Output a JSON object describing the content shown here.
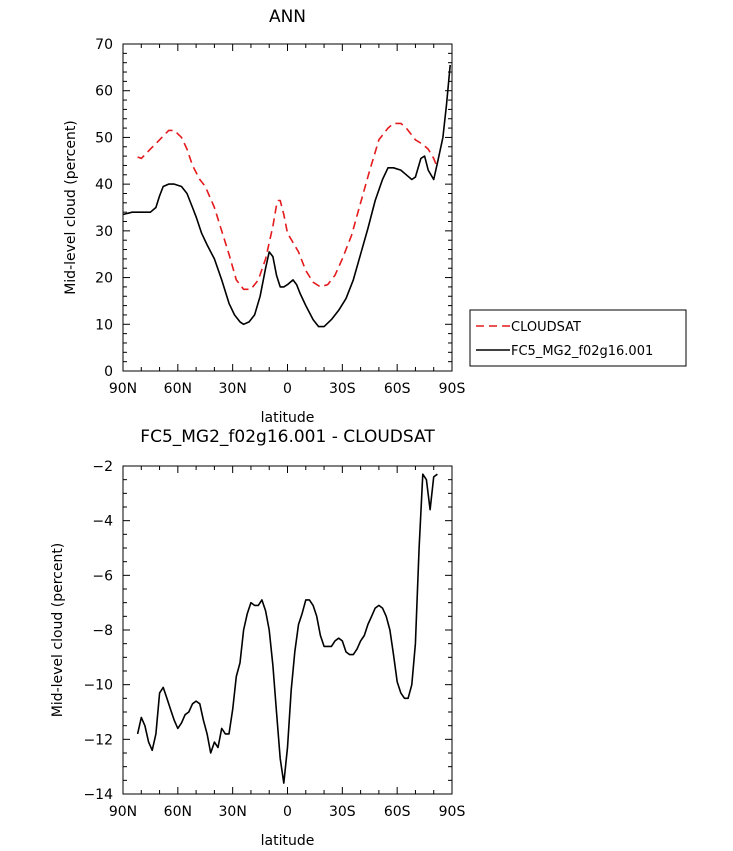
{
  "chart_data": [
    {
      "type": "line",
      "title": "ANN",
      "xlabel": "latitude",
      "ylabel": "Mid-level cloud (percent)",
      "xlim": [
        90,
        -90
      ],
      "ylim": [
        0,
        70
      ],
      "x_ticks": [
        90,
        60,
        30,
        0,
        -30,
        -60,
        -90
      ],
      "x_tick_labels": [
        "90N",
        "60N",
        "30N",
        "0",
        "30S",
        "60S",
        "90S"
      ],
      "y_ticks": [
        0,
        10,
        20,
        30,
        40,
        50,
        60,
        70
      ],
      "y_tick_labels": [
        "0",
        "10",
        "20",
        "30",
        "40",
        "50",
        "60",
        "70"
      ],
      "grid": false,
      "legend_position": "outside right",
      "series": [
        {
          "name": "CLOUDSAT",
          "color": "#e41a1c",
          "dash": "dashed",
          "x": [
            82,
            80,
            75,
            70,
            65,
            62,
            58,
            55,
            52,
            48,
            45,
            40,
            36,
            32,
            28,
            24,
            20,
            16,
            12,
            8,
            6,
            5,
            4,
            2,
            0,
            -3,
            -6,
            -10,
            -14,
            -18,
            -22,
            -26,
            -30,
            -35,
            -40,
            -45,
            -50,
            -55,
            -58,
            -62,
            -65,
            -70,
            -74,
            -77,
            -80,
            -82
          ],
          "y": [
            45.8,
            45.5,
            47.5,
            49.5,
            51.5,
            51.5,
            50,
            47.5,
            44,
            41,
            39.5,
            35,
            30,
            25,
            19.5,
            17.5,
            17.5,
            19.5,
            24,
            31,
            35.5,
            36.5,
            36.5,
            33.5,
            29.5,
            27.5,
            25.5,
            21.5,
            19,
            18,
            18.5,
            20.5,
            24,
            29,
            36,
            43,
            49.5,
            52,
            53,
            53,
            52,
            49.5,
            48.5,
            47.5,
            45.5,
            43.5
          ]
        },
        {
          "name": "FC5_MG2_f02g16.001",
          "color": "#000000",
          "dash": "solid",
          "x": [
            90,
            85,
            80,
            75,
            72,
            70,
            68,
            65,
            62,
            58,
            55,
            52,
            50,
            47,
            44,
            40,
            36,
            32,
            29,
            26,
            24,
            21,
            18,
            15,
            12,
            10,
            8,
            6,
            4,
            2,
            0,
            -3,
            -5,
            -7,
            -10,
            -14,
            -17,
            -20,
            -24,
            -28,
            -32,
            -36,
            -40,
            -44,
            -48,
            -52,
            -55,
            -58,
            -62,
            -65,
            -68,
            -70,
            -73,
            -75,
            -77,
            -80,
            -82,
            -85,
            -87,
            -89
          ],
          "y": [
            33.5,
            34,
            34,
            34,
            35,
            37.5,
            39.5,
            40,
            40,
            39.5,
            38,
            35,
            33,
            29.5,
            27,
            24,
            19.5,
            14.5,
            12,
            10.5,
            10,
            10.5,
            12,
            16,
            22,
            25.5,
            24.5,
            20.5,
            18,
            18,
            18.5,
            19.5,
            18.5,
            16.5,
            14,
            11,
            9.5,
            9.5,
            11,
            13,
            15.5,
            19.5,
            25,
            30.5,
            36.5,
            41,
            43.5,
            43.5,
            43,
            42,
            41,
            41.5,
            45.5,
            46,
            43,
            41,
            44.5,
            50,
            57,
            65.5
          ]
        }
      ]
    },
    {
      "type": "line",
      "title": "FC5_MG2_f02g16.001 - CLOUDSAT",
      "xlabel": "latitude",
      "ylabel": "Mid-level cloud (percent)",
      "xlim": [
        90,
        -90
      ],
      "ylim": [
        -14,
        -2
      ],
      "x_ticks": [
        90,
        60,
        30,
        0,
        -30,
        -60,
        -90
      ],
      "x_tick_labels": [
        "90N",
        "60N",
        "30N",
        "0",
        "30S",
        "60S",
        "90S"
      ],
      "y_ticks": [
        -14,
        -12,
        -10,
        -8,
        -6,
        -4,
        -2
      ],
      "y_tick_labels": [
        "−14",
        "−12",
        "−10",
        "−8",
        "−6",
        "−4",
        "−2"
      ],
      "grid": false,
      "series": [
        {
          "color": "#000000",
          "dash": "solid",
          "x": [
            82,
            80,
            78,
            76,
            74,
            72,
            70,
            68,
            66,
            64,
            62,
            60,
            58,
            56,
            54,
            52,
            50,
            48,
            46,
            44,
            42,
            40,
            38,
            36,
            34,
            32,
            30,
            28,
            26,
            24,
            22,
            20,
            18,
            16,
            14,
            12,
            10,
            8,
            6,
            4,
            2,
            0,
            -2,
            -4,
            -6,
            -8,
            -10,
            -12,
            -14,
            -16,
            -18,
            -20,
            -22,
            -24,
            -26,
            -28,
            -30,
            -32,
            -34,
            -36,
            -38,
            -40,
            -42,
            -44,
            -46,
            -48,
            -50,
            -52,
            -54,
            -56,
            -58,
            -60,
            -62,
            -64,
            -66,
            -68,
            -70,
            -72,
            -74,
            -76,
            -78,
            -80,
            -82
          ],
          "y": [
            -11.8,
            -11.2,
            -11.5,
            -12.1,
            -12.4,
            -11.8,
            -10.3,
            -10.1,
            -10.5,
            -10.9,
            -11.3,
            -11.6,
            -11.4,
            -11.1,
            -11.0,
            -10.7,
            -10.6,
            -10.7,
            -11.3,
            -11.8,
            -12.5,
            -12.1,
            -12.3,
            -11.6,
            -11.8,
            -11.8,
            -10.9,
            -9.7,
            -9.2,
            -8.0,
            -7.4,
            -7.0,
            -7.1,
            -7.1,
            -6.9,
            -7.3,
            -8.0,
            -9.3,
            -11.0,
            -12.7,
            -13.6,
            -12.3,
            -10.2,
            -8.8,
            -7.8,
            -7.4,
            -6.9,
            -6.9,
            -7.1,
            -7.5,
            -8.2,
            -8.6,
            -8.6,
            -8.6,
            -8.4,
            -8.3,
            -8.4,
            -8.8,
            -8.9,
            -8.9,
            -8.7,
            -8.4,
            -8.2,
            -7.8,
            -7.5,
            -7.2,
            -7.1,
            -7.2,
            -7.5,
            -8.0,
            -8.9,
            -9.9,
            -10.3,
            -10.5,
            -10.5,
            -10.0,
            -8.5,
            -5.0,
            -2.3,
            -2.5,
            -3.6,
            -2.4,
            -2.3
          ]
        }
      ]
    }
  ]
}
